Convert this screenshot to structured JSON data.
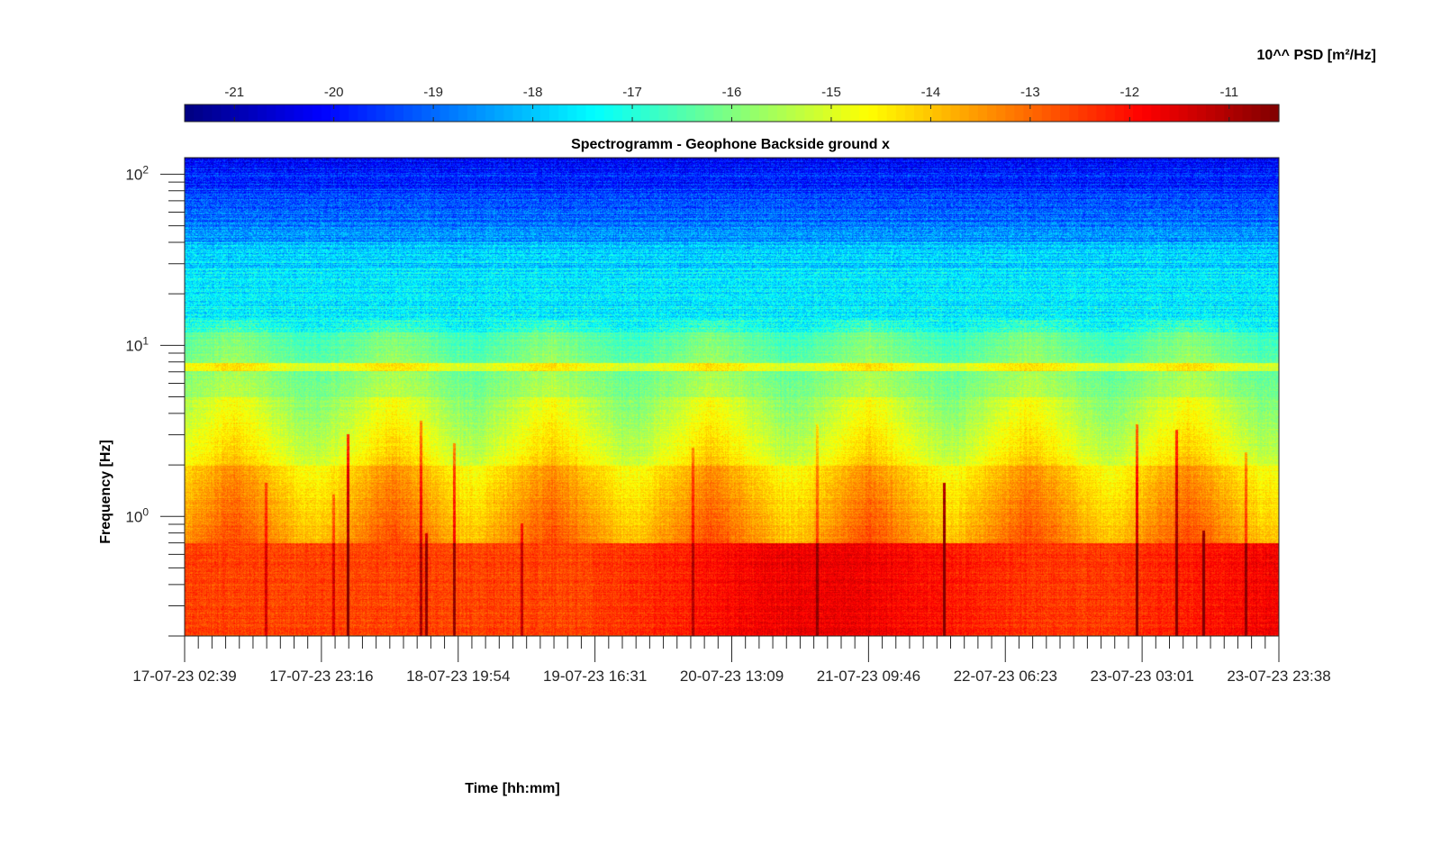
{
  "chart_data": {
    "type": "heatmap",
    "title": "Spectrogramm - Geophone Backside ground x",
    "xlabel": "Time [hh:mm]",
    "ylabel": "Frequency [Hz]",
    "y_scale": "log",
    "ylim": [
      0.2,
      125
    ],
    "xlim": [
      "17-07-23 02:39",
      "23-07-23 23:38"
    ],
    "x_tick_labels": [
      "17-07-23 02:39",
      "17-07-23 23:16",
      "18-07-23 19:54",
      "19-07-23 16:31",
      "20-07-23 13:09",
      "21-07-23 09:46",
      "22-07-23 06:23",
      "23-07-23 03:01",
      "23-07-23 23:38"
    ],
    "y_ticks": [
      {
        "base": "10",
        "exp": "0",
        "value": 1
      },
      {
        "base": "10",
        "exp": "1",
        "value": 10
      },
      {
        "base": "10",
        "exp": "2",
        "value": 100
      }
    ],
    "colorbar": {
      "label": "10^^ PSD [m²/Hz]",
      "range": [
        -21.5,
        -10.5
      ],
      "tick_labels": [
        "-21",
        "-20",
        "-19",
        "-18",
        "-17",
        "-16",
        "-15",
        "-14",
        "-13",
        "-12",
        "-11"
      ],
      "tick_values": [
        -21,
        -20,
        -19,
        -18,
        -17,
        -16,
        -15,
        -14,
        -13,
        -12,
        -11
      ],
      "colormap": "jet",
      "position": "top"
    },
    "features": {
      "low_freq_band_hz": [
        0.2,
        0.7
      ],
      "low_freq_level": -12.6,
      "mid_freq_level": -15.0,
      "high_freq_level": -18.5,
      "persistent_line_hz": 7.5,
      "elevated_period_start": "19-07-23 16:00",
      "elevated_period_level": -12.0,
      "activity_bursts": [
        "17-07-23 10:00",
        "18-07-23 10:00",
        "19-07-23 10:00",
        "20-07-23 10:00",
        "21-07-23 10:00",
        "22-07-23 10:00",
        "23-07-23 10:00"
      ]
    }
  }
}
